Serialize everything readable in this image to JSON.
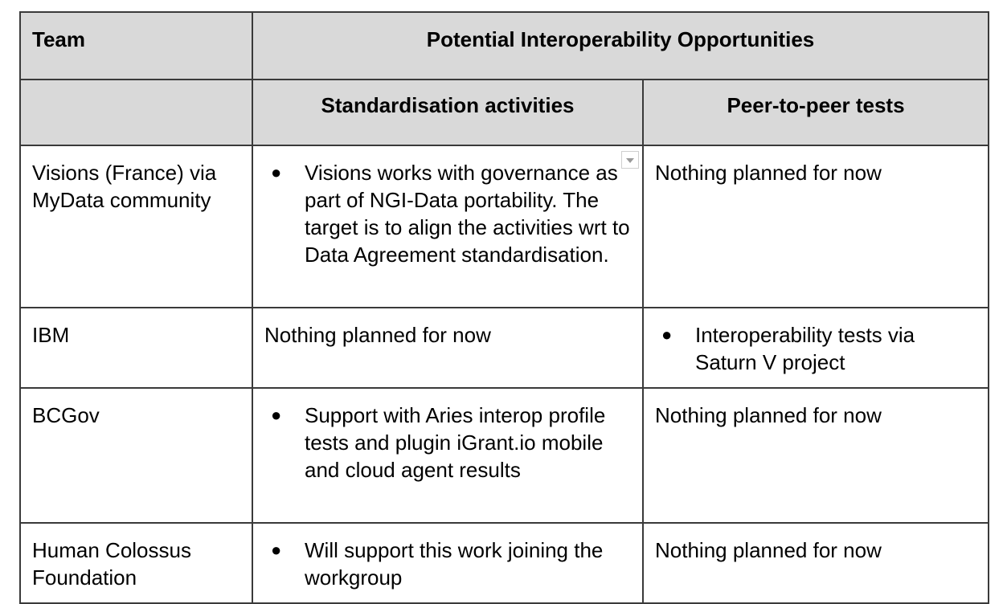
{
  "table": {
    "header": {
      "team": "Team",
      "group": "Potential Interoperability Opportunities",
      "standardisation": "Standardisation activities",
      "peer": "Peer-to-peer tests"
    },
    "rows": [
      {
        "team": "Visions (France) via MyData community",
        "standardisation_bullet": "Visions works with governance as part of NGI-Data portability. The target is to align the activities wrt to Data Agreement standardisation.",
        "peer_text": "Nothing planned for now"
      },
      {
        "team": "IBM",
        "standardisation_text": "Nothing planned for now",
        "peer_bullet": "Interoperability tests via Saturn V project"
      },
      {
        "team": "BCGov",
        "standardisation_bullet": "Support with Aries interop profile tests and plugin iGrant.io mobile and cloud agent results",
        "peer_text": "Nothing planned for now"
      },
      {
        "team": "Human Colossus Foundation",
        "standardisation_bullet": "Will support this work joining the workgroup",
        "peer_text": "Nothing planned for now"
      }
    ],
    "bullet_glyph": "●",
    "icons": {
      "cell_dropdown": "dropdown-arrow-icon"
    }
  }
}
